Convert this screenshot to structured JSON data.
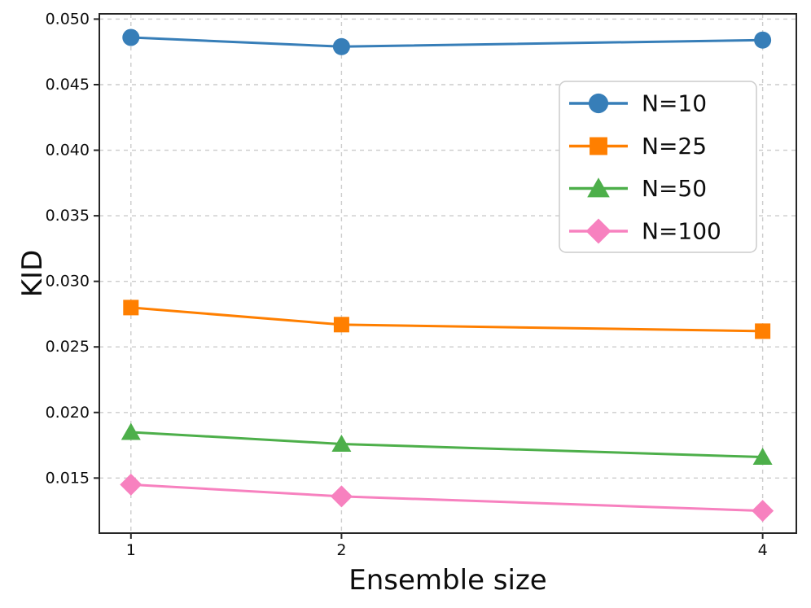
{
  "figure": {
    "background": "#ffffff",
    "spine_color": "#262626",
    "grid_color": "#cccccc",
    "text_color": "#0d0d0d"
  },
  "chart_data": {
    "type": "line",
    "title": "",
    "xlabel": "Ensemble size",
    "ylabel": "KID",
    "x": [
      1,
      2,
      4
    ],
    "x_tick_labels": [
      "1",
      "2",
      "4"
    ],
    "y_ticks": [
      0.015,
      0.02,
      0.025,
      0.03,
      0.035,
      0.04,
      0.045,
      0.05
    ],
    "y_tick_labels": [
      "0.015",
      "0.020",
      "0.025",
      "0.030",
      "0.035",
      "0.040",
      "0.045",
      "0.050"
    ],
    "xlim": [
      0.85,
      4.16
    ],
    "ylim": [
      0.0108,
      0.0504
    ],
    "grid": "dashed",
    "legend": {
      "position": "upper-right",
      "entries": [
        "N=10",
        "N=25",
        "N=50",
        "N=100"
      ]
    },
    "series": [
      {
        "name": "N=10",
        "marker": "circle",
        "color": "#377eb8",
        "values": [
          0.0486,
          0.0479,
          0.0484
        ]
      },
      {
        "name": "N=25",
        "marker": "square",
        "color": "#ff7f00",
        "values": [
          0.028,
          0.0267,
          0.0262
        ]
      },
      {
        "name": "N=50",
        "marker": "triangle",
        "color": "#4daf4a",
        "values": [
          0.0185,
          0.0176,
          0.0166
        ]
      },
      {
        "name": "N=100",
        "marker": "diamond",
        "color": "#f781bf",
        "values": [
          0.0145,
          0.0136,
          0.0125
        ]
      }
    ]
  }
}
